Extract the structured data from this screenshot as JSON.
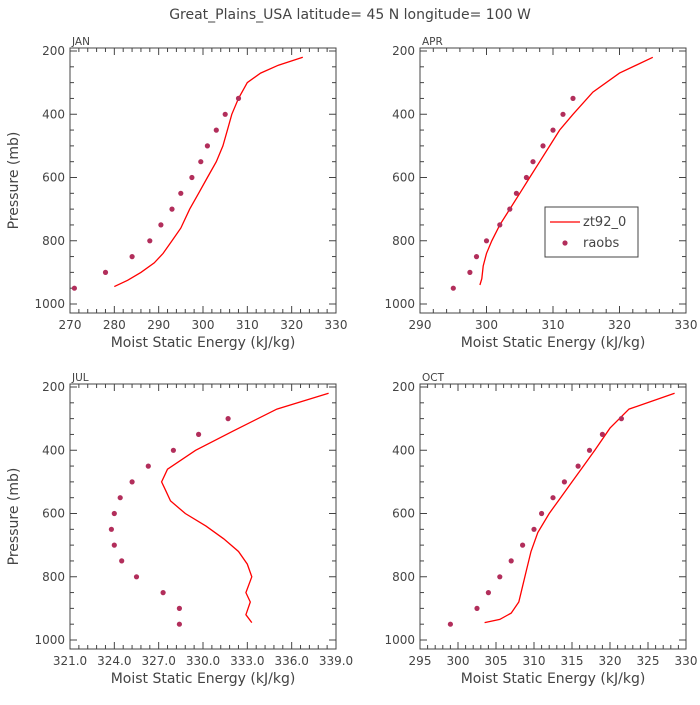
{
  "title": "Great_Plains_USA   latitude= 45 N longitude= 100 W",
  "colors": {
    "model": "#ff0000",
    "raobs": "#b22e5b",
    "axis": "#444444",
    "text": "#444444"
  },
  "legend": {
    "model": "zt92_0",
    "obs": "raobs",
    "panel": 1
  },
  "chart_data": [
    {
      "type": "line",
      "panel": "JAN",
      "xlabel": "Moist Static Energy (kJ/kg)",
      "ylabel": "Pressure (mb)",
      "xlim": [
        270,
        330
      ],
      "xticks": [
        270,
        280,
        290,
        300,
        310,
        320,
        330
      ],
      "xtick_labels": [
        "270",
        "280",
        "290",
        "300",
        "310",
        "320",
        "330"
      ],
      "ylim": [
        1000,
        200
      ],
      "yticks": [
        200,
        400,
        600,
        800,
        1000
      ],
      "series": [
        {
          "name": "zt92_0",
          "style": "line",
          "x": [
            280,
            283,
            286,
            289,
            291,
            293,
            295,
            297,
            299,
            301,
            303,
            304.5,
            305.5,
            306.5,
            308,
            310,
            313,
            317,
            322.5
          ],
          "y": [
            945,
            925,
            900,
            870,
            840,
            800,
            760,
            700,
            650,
            600,
            550,
            500,
            450,
            400,
            350,
            300,
            270,
            245,
            220
          ]
        },
        {
          "name": "raobs",
          "style": "points",
          "x": [
            271,
            278,
            284,
            288,
            290.5,
            293,
            295,
            297.5,
            299.5,
            301,
            303,
            305,
            308
          ],
          "y": [
            950,
            900,
            850,
            800,
            750,
            700,
            650,
            600,
            550,
            500,
            450,
            400,
            350
          ]
        }
      ]
    },
    {
      "type": "line",
      "panel": "APR",
      "xlabel": "Moist Static Energy (kJ/kg)",
      "ylabel": "",
      "xlim": [
        290,
        330
      ],
      "xticks": [
        290,
        300,
        310,
        320,
        330
      ],
      "xtick_labels": [
        "290",
        "300",
        "310",
        "320",
        "330"
      ],
      "ylim": [
        1000,
        200
      ],
      "yticks": [
        200,
        400,
        600,
        800,
        1000
      ],
      "series": [
        {
          "name": "zt92_0",
          "style": "line",
          "x": [
            299,
            299.3,
            299.5,
            300,
            300.8,
            302,
            303.5,
            305,
            306.5,
            308,
            309.5,
            311,
            313,
            316,
            320,
            325
          ],
          "y": [
            940,
            920,
            880,
            840,
            800,
            750,
            700,
            650,
            600,
            550,
            500,
            450,
            400,
            330,
            270,
            220
          ]
        },
        {
          "name": "raobs",
          "style": "points",
          "x": [
            295,
            297.5,
            298.5,
            300,
            302,
            303.5,
            304.5,
            306,
            307,
            308.5,
            310,
            311.5,
            313
          ],
          "y": [
            950,
            900,
            850,
            800,
            750,
            700,
            650,
            600,
            550,
            500,
            450,
            400,
            350
          ]
        }
      ]
    },
    {
      "type": "line",
      "panel": "JUL",
      "xlabel": "Moist Static Energy (kJ/kg)",
      "ylabel": "Pressure (mb)",
      "xlim": [
        321,
        339
      ],
      "xticks": [
        321,
        324,
        327,
        330,
        333,
        336,
        339
      ],
      "xtick_labels": [
        "321.0",
        "324.0",
        "327.0",
        "330.0",
        "333.0",
        "336.0",
        "339.0"
      ],
      "ylim": [
        1000,
        200
      ],
      "yticks": [
        200,
        400,
        600,
        800,
        1000
      ],
      "series": [
        {
          "name": "zt92_0",
          "style": "line",
          "x": [
            333.3,
            332.9,
            333.2,
            332.9,
            333.3,
            333,
            332.4,
            331.4,
            330.2,
            328.8,
            327.8,
            327.4,
            327.2,
            327.6,
            329.5,
            332,
            335,
            338.5
          ],
          "y": [
            945,
            920,
            880,
            850,
            800,
            760,
            720,
            680,
            640,
            600,
            560,
            520,
            500,
            460,
            400,
            340,
            270,
            220
          ]
        },
        {
          "name": "raobs",
          "style": "points",
          "x": [
            328.4,
            328.4,
            327.3,
            325.5,
            324.5,
            324,
            323.8,
            324,
            324.4,
            325.2,
            326.3,
            328,
            329.7,
            331.7
          ],
          "y": [
            950,
            900,
            850,
            800,
            750,
            700,
            650,
            600,
            550,
            500,
            450,
            400,
            350,
            300
          ]
        }
      ]
    },
    {
      "type": "line",
      "panel": "OCT",
      "xlabel": "Moist Static Energy (kJ/kg)",
      "ylabel": "",
      "xlim": [
        295,
        330
      ],
      "xticks": [
        295,
        300,
        305,
        310,
        315,
        320,
        325,
        330
      ],
      "xtick_labels": [
        "295",
        "300",
        "305",
        "310",
        "315",
        "320",
        "325",
        "330"
      ],
      "ylim": [
        1000,
        200
      ],
      "yticks": [
        200,
        400,
        600,
        800,
        1000
      ],
      "series": [
        {
          "name": "zt92_0",
          "style": "line",
          "x": [
            303.5,
            305.5,
            307,
            308,
            308.5,
            309,
            309.6,
            310.5,
            312,
            313.5,
            315,
            316.5,
            318,
            320,
            322.5,
            328.5
          ],
          "y": [
            945,
            935,
            915,
            880,
            830,
            780,
            720,
            660,
            600,
            550,
            500,
            450,
            400,
            330,
            270,
            220
          ]
        },
        {
          "name": "raobs",
          "style": "points",
          "x": [
            299,
            302.5,
            304,
            305.5,
            307,
            308.5,
            310,
            311,
            312.5,
            314,
            315.8,
            317.3,
            319,
            321.5
          ],
          "y": [
            950,
            900,
            850,
            800,
            750,
            700,
            650,
            600,
            550,
            500,
            450,
            400,
            350,
            300
          ]
        }
      ]
    }
  ]
}
